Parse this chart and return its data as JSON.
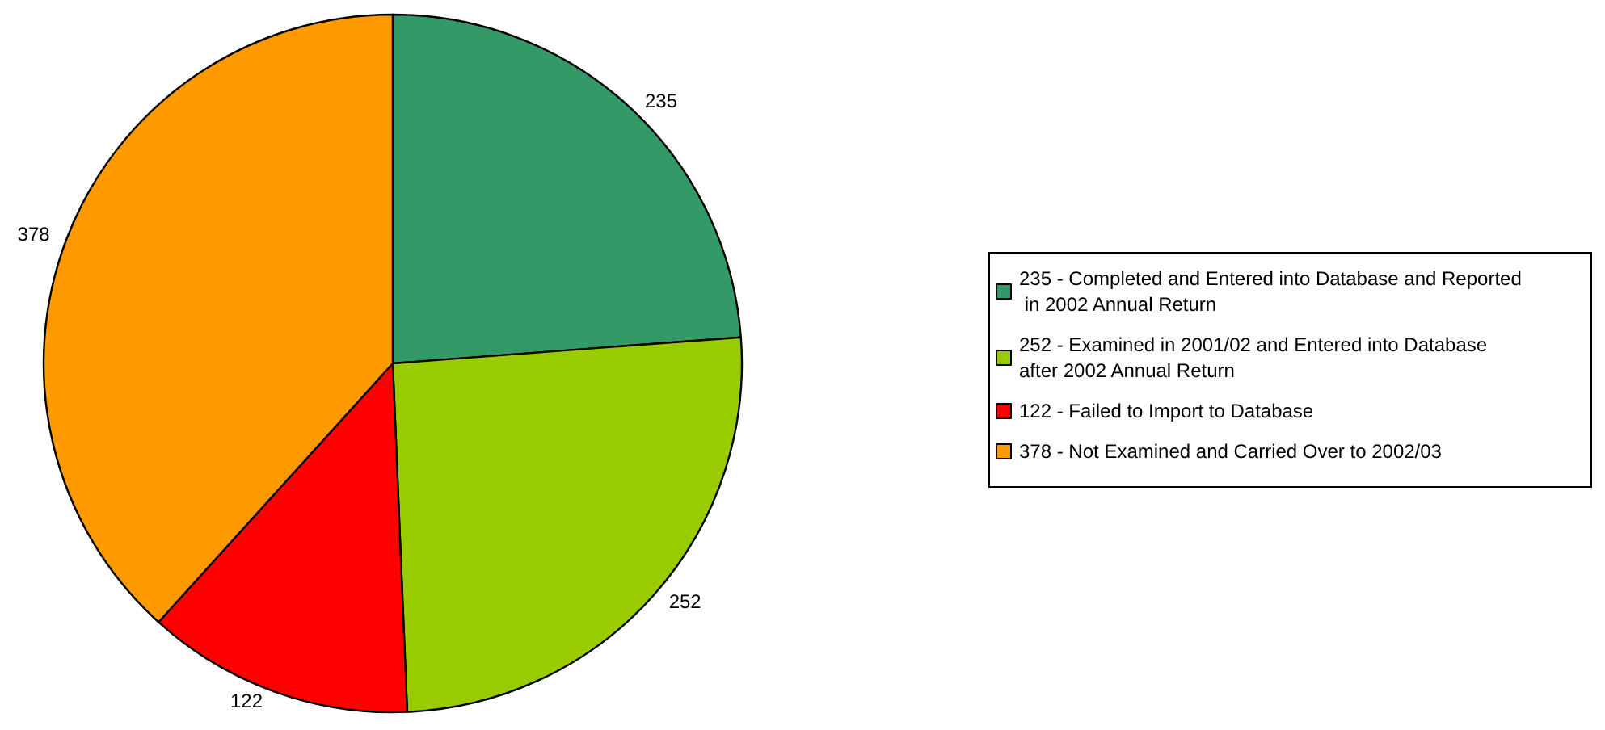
{
  "chart_data": {
    "type": "pie",
    "categories": [
      "235 - Completed and Entered into Database and Reported in 2002 Annual Return",
      "252 - Examined in 2001/02 and Entered into Database after 2002 Annual Return",
      "122 - Failed to Import to Database",
      "378 - Not Examined and Carried Over to 2002/03"
    ],
    "values": [
      235,
      252,
      122,
      378
    ],
    "colors": [
      "#339966",
      "#99cc00",
      "#ff0000",
      "#ff9900"
    ],
    "data_labels": true,
    "legend": "right"
  }
}
